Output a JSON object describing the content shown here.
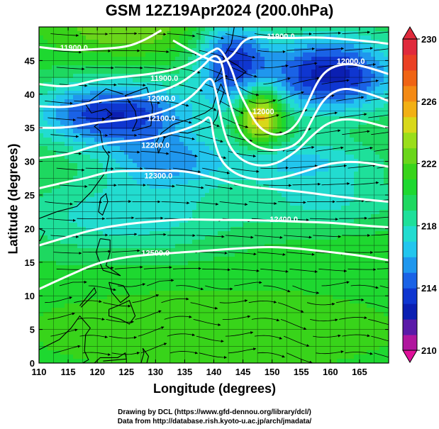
{
  "title": "GSM 12Z19Apr2024 (200.0hPa)",
  "xlabel": "Longitude (degrees)",
  "ylabel": "Latitude  (degrees)",
  "credits": {
    "line1": "Drawing by DCL (https://www.gfd-dennou.org/library/dcl/)",
    "line2": "Data from http://database.rish.kyoto-u.ac.jp/arch/jmadata/"
  },
  "map": {
    "lon_range": [
      110,
      170
    ],
    "lat_range": [
      0,
      50
    ],
    "x_ticks": [
      110,
      115,
      120,
      125,
      130,
      135,
      140,
      145,
      150,
      155,
      160,
      165
    ],
    "y_ticks": [
      0,
      5,
      10,
      15,
      20,
      25,
      30,
      35,
      40,
      45
    ],
    "field": "temperature (shaded), geopotential height (contours), wind (streamlines)",
    "colorbar": {
      "min": 210,
      "max": 230,
      "labels": [
        "230",
        "226",
        "222",
        "218",
        "214",
        "210"
      ],
      "label_values": [
        230,
        226,
        222,
        218,
        214,
        210
      ],
      "stops": [
        {
          "v": 210,
          "c": "#e0109a"
        },
        {
          "v": 211,
          "c": "#b0169e"
        },
        {
          "v": 212,
          "c": "#5a1aa8"
        },
        {
          "v": 213,
          "c": "#0b1fb2"
        },
        {
          "v": 214,
          "c": "#0f36d0"
        },
        {
          "v": 215,
          "c": "#1a62e6"
        },
        {
          "v": 216,
          "c": "#1f97ee"
        },
        {
          "v": 217,
          "c": "#22c6ee"
        },
        {
          "v": 218,
          "c": "#22dcd0"
        },
        {
          "v": 219,
          "c": "#1ee09a"
        },
        {
          "v": 220,
          "c": "#1ed860"
        },
        {
          "v": 221,
          "c": "#1ed830"
        },
        {
          "v": 222,
          "c": "#38d41a"
        },
        {
          "v": 223,
          "c": "#6ad61a"
        },
        {
          "v": 224,
          "c": "#9ade1a"
        },
        {
          "v": 225,
          "c": "#d8d81a"
        },
        {
          "v": 226,
          "c": "#f2b014"
        },
        {
          "v": 227,
          "c": "#f48a14"
        },
        {
          "v": 228,
          "c": "#f06414"
        },
        {
          "v": 229,
          "c": "#ea4024"
        },
        {
          "v": 230,
          "c": "#e02a3c"
        }
      ]
    },
    "contour_labels": [
      {
        "text": "11900.0",
        "lon": 151.5,
        "lat": 48.2
      },
      {
        "text": "11900.0",
        "lon": 116.0,
        "lat": 46.5
      },
      {
        "text": "12000.0",
        "lon": 163.5,
        "lat": 44.5
      },
      {
        "text": "11900.0",
        "lon": 131.5,
        "lat": 42.0
      },
      {
        "text": "12000.0",
        "lon": 131.0,
        "lat": 39.0
      },
      {
        "text": "12100.0",
        "lon": 131.0,
        "lat": 36.0
      },
      {
        "text": "12200.0",
        "lon": 130.0,
        "lat": 32.0
      },
      {
        "text": "12300.0",
        "lon": 130.5,
        "lat": 27.5
      },
      {
        "text": "12400.0",
        "lon": 152.0,
        "lat": 21.0
      },
      {
        "text": "12500.0",
        "lon": 130.0,
        "lat": 16.0
      },
      {
        "text": "12000",
        "lon": 148.5,
        "lat": 37.0
      }
    ]
  }
}
